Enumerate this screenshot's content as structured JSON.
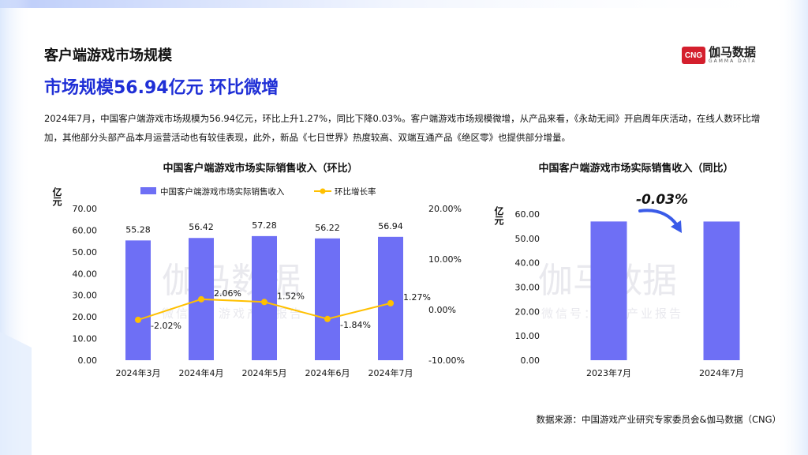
{
  "header": {
    "section_title": "客户端游戏市场规模",
    "headline": "市场规模56.94亿元 环比微增",
    "summary": "2024年7月，中国客户端游戏市场规模为56.94亿元，环比上升1.27%，同比下降0.03%。客户端游戏市场规模微增，从产品来看，《永劫无间》开启周年庆活动，在线人数环比增加，其他部分头部产品本月运营活动也有较佳表现，此外，新品《七日世界》热度较高、双端互通产品《绝区零》也提供部分增量。"
  },
  "logo": {
    "mark": "CNG",
    "name": "伽马数据",
    "name_en": "GAMMA DATA"
  },
  "watermark": {
    "main": "伽马数据",
    "sub": "微信号：游戏产业报告"
  },
  "colors": {
    "bar": "#6e6ff5",
    "line": "#ffc000",
    "accent": "#1f2fd6",
    "arrow": "#3a5be8"
  },
  "source": "数据来源：中国游戏产业研究专家委员会&伽马数据（CNG）",
  "chart_data": [
    {
      "type": "bar",
      "title": "中国客户端游戏市场实际销售收入（环比）",
      "ylabel": "亿元",
      "ylim": [
        0,
        70
      ],
      "yticks": [
        "0.00",
        "10.00",
        "20.00",
        "30.00",
        "40.00",
        "50.00",
        "60.00",
        "70.00"
      ],
      "y2lim": [
        -10,
        20
      ],
      "y2ticks": [
        "-10.00%",
        "0.00%",
        "10.00%",
        "20.00%"
      ],
      "categories": [
        "2024年3月",
        "2024年4月",
        "2024年5月",
        "2024年6月",
        "2024年7月"
      ],
      "legend_position": "top",
      "series": [
        {
          "name": "中国客户端游戏市场实际销售收入",
          "type": "bar",
          "axis": "left",
          "values": [
            55.28,
            56.42,
            57.28,
            56.22,
            56.94
          ],
          "labels": [
            "55.28",
            "56.42",
            "57.28",
            "56.22",
            "56.94"
          ]
        },
        {
          "name": "环比增长率",
          "type": "line",
          "axis": "right",
          "values": [
            -2.02,
            2.06,
            1.52,
            -1.84,
            1.27
          ],
          "labels": [
            "-2.02%",
            "2.06%",
            "1.52%",
            "-1.84%",
            "1.27%"
          ]
        }
      ]
    },
    {
      "type": "bar",
      "title": "中国客户端游戏市场实际销售收入（同比）",
      "ylabel": "亿元",
      "ylim": [
        0,
        60
      ],
      "yticks": [
        "0.00",
        "10.00",
        "20.00",
        "30.00",
        "40.00",
        "50.00",
        "60.00"
      ],
      "categories": [
        "2023年7月",
        "2024年7月"
      ],
      "values": [
        56.96,
        56.94
      ],
      "annotation": "-0.03%"
    }
  ]
}
